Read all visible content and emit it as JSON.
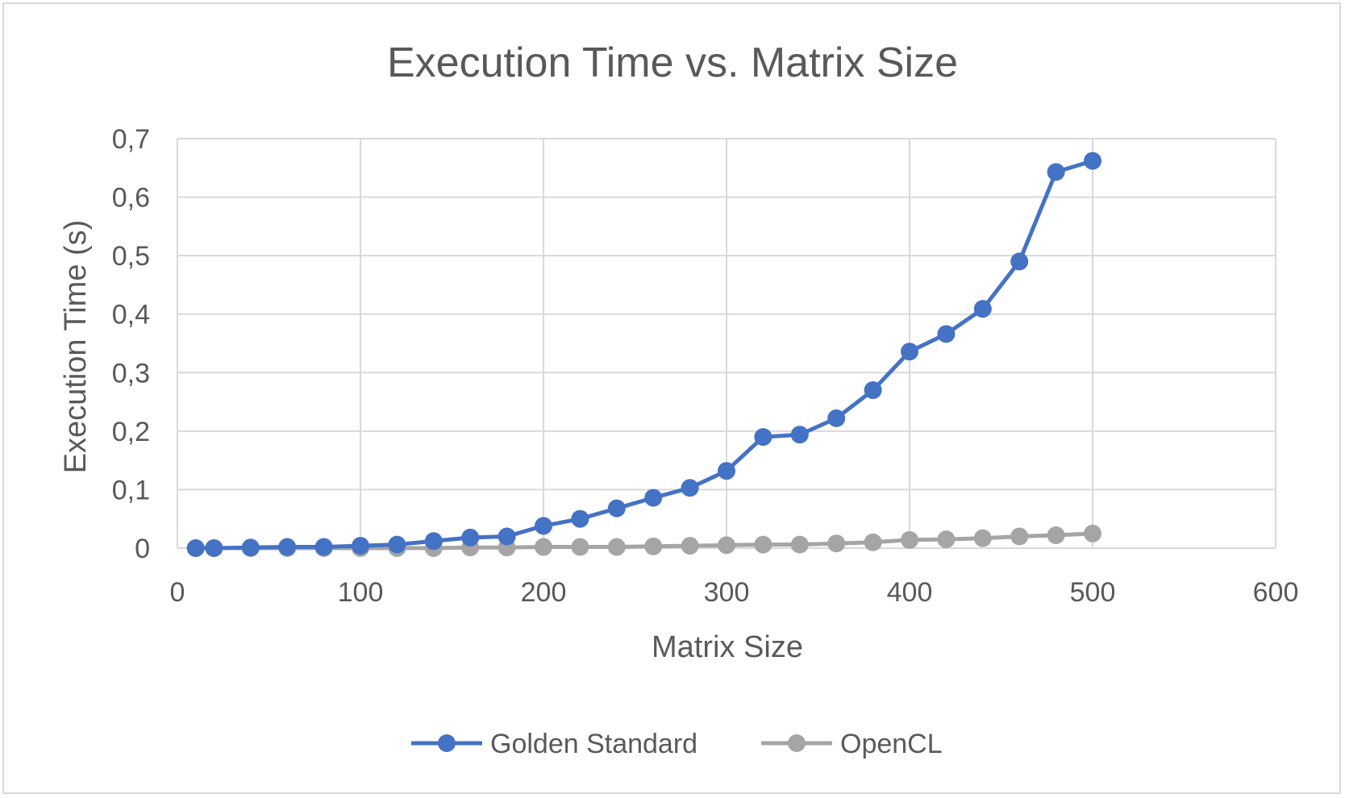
{
  "chart_data": {
    "type": "line",
    "title": "Execution Time vs. Matrix Size",
    "xlabel": "Matrix Size",
    "ylabel": "Execution Time (s)",
    "xlim": [
      0,
      600
    ],
    "ylim": [
      0,
      0.7
    ],
    "x_ticks": [
      "0",
      "100",
      "200",
      "300",
      "400",
      "500",
      "600"
    ],
    "x_tick_values": [
      0,
      100,
      200,
      300,
      400,
      500,
      600
    ],
    "y_ticks": [
      "0",
      "0,1",
      "0,2",
      "0,3",
      "0,4",
      "0,5",
      "0,6",
      "0,7"
    ],
    "y_tick_values": [
      0,
      0.1,
      0.2,
      0.3,
      0.4,
      0.5,
      0.6,
      0.7
    ],
    "grid": true,
    "legend_position": "bottom",
    "x": [
      10,
      20,
      40,
      60,
      80,
      100,
      120,
      140,
      160,
      180,
      200,
      220,
      240,
      260,
      280,
      300,
      320,
      340,
      360,
      380,
      400,
      420,
      440,
      460,
      480,
      500
    ],
    "series": [
      {
        "name": "Golden Standard",
        "color": "#4472c4",
        "values": [
          0.0,
          0.0,
          0.001,
          0.002,
          0.002,
          0.004,
          0.006,
          0.012,
          0.018,
          0.02,
          0.038,
          0.05,
          0.068,
          0.086,
          0.103,
          0.132,
          0.19,
          0.194,
          0.222,
          0.27,
          0.336,
          0.366,
          0.409,
          0.49,
          0.643,
          0.662
        ]
      },
      {
        "name": "OpenCL",
        "color": "#a5a5a5",
        "values": [
          0.0,
          0.0,
          0.0,
          0.0,
          0.0,
          0.0,
          0.0,
          0.0,
          0.001,
          0.001,
          0.002,
          0.002,
          0.002,
          0.003,
          0.004,
          0.005,
          0.006,
          0.006,
          0.008,
          0.01,
          0.014,
          0.015,
          0.017,
          0.02,
          0.022,
          0.025
        ]
      }
    ]
  },
  "colors": {
    "grid": "#d9d9d9",
    "text": "#595959",
    "frame": "#d9d9d9"
  }
}
